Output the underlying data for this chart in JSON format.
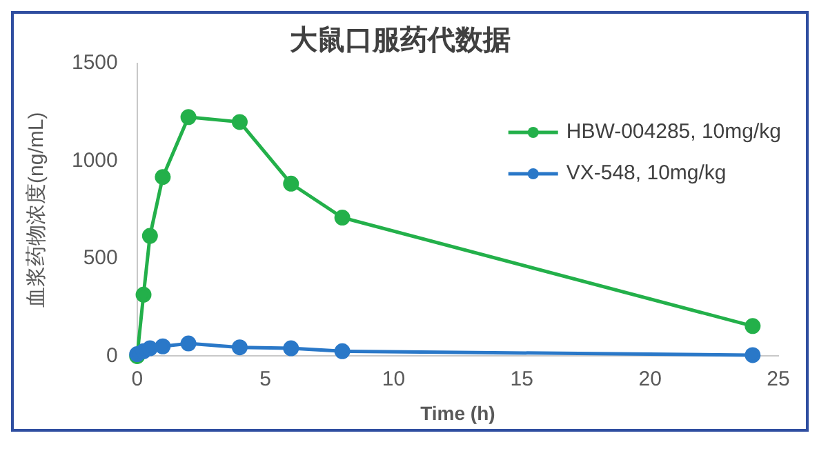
{
  "chart_data": {
    "type": "line",
    "title": "大鼠口服药代数据",
    "xlabel": "Time (h)",
    "ylabel": "血浆药物浓度(ng/mL)",
    "x": [
      0,
      0.25,
      0.5,
      1,
      2,
      4,
      6,
      8,
      24
    ],
    "series": [
      {
        "name": "HBW-004285, 10mg/kg",
        "color": "#23b04a",
        "values": [
          0,
          315,
          616,
          918,
          1225,
          1200,
          884,
          710,
          154
        ]
      },
      {
        "name": "VX-548, 10mg/kg",
        "color": "#2a78c8",
        "values": [
          10,
          25,
          40,
          50,
          65,
          45,
          40,
          25,
          5
        ]
      }
    ],
    "xlim": [
      0,
      25
    ],
    "xticks": [
      0,
      5,
      10,
      15,
      20,
      25
    ],
    "ylim": [
      0,
      1500
    ],
    "yticks": [
      0,
      500,
      1000,
      1500
    ],
    "grid": false,
    "legend": "top right",
    "marker": "circle",
    "line_style": "solid"
  }
}
